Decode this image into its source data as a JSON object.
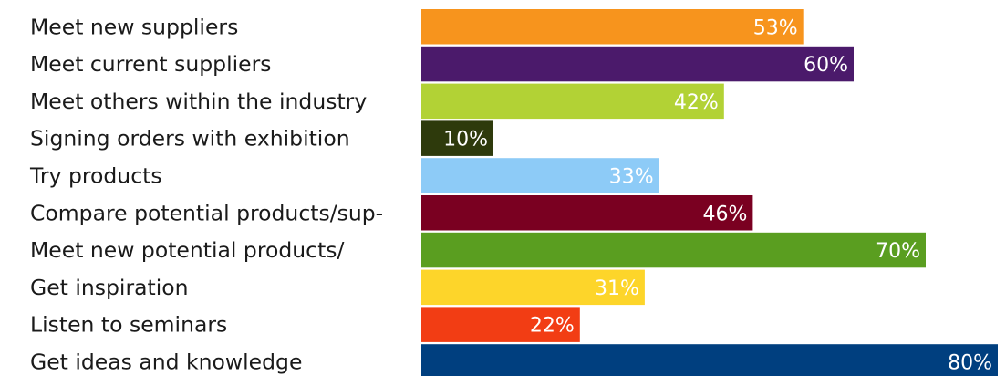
{
  "chart_data": {
    "type": "bar",
    "orientation": "horizontal",
    "categories": [
      "Meet new suppliers",
      "Meet current suppliers",
      "Meet others within the industry",
      "Signing orders with exhibition",
      "Try products",
      "Compare potential products/sup-",
      "Meet new potential products/",
      "Get inspiration",
      "Listen to seminars",
      "Get ideas and knowledge"
    ],
    "values": [
      53,
      60,
      42,
      10,
      33,
      46,
      70,
      31,
      22,
      80
    ],
    "value_labels": [
      "53%",
      "60%",
      "42%",
      "10%",
      "33%",
      "46%",
      "70%",
      "31%",
      "22%",
      "80%"
    ],
    "colors": [
      "#F7941D",
      "#4B1A6B",
      "#B2D235",
      "#2E3A0C",
      "#8DCBF7",
      "#7A0021",
      "#5A9E20",
      "#FDD52A",
      "#F23D14",
      "#003F7F"
    ],
    "xlim": [
      0,
      80
    ],
    "grid": false,
    "legend": "none"
  }
}
